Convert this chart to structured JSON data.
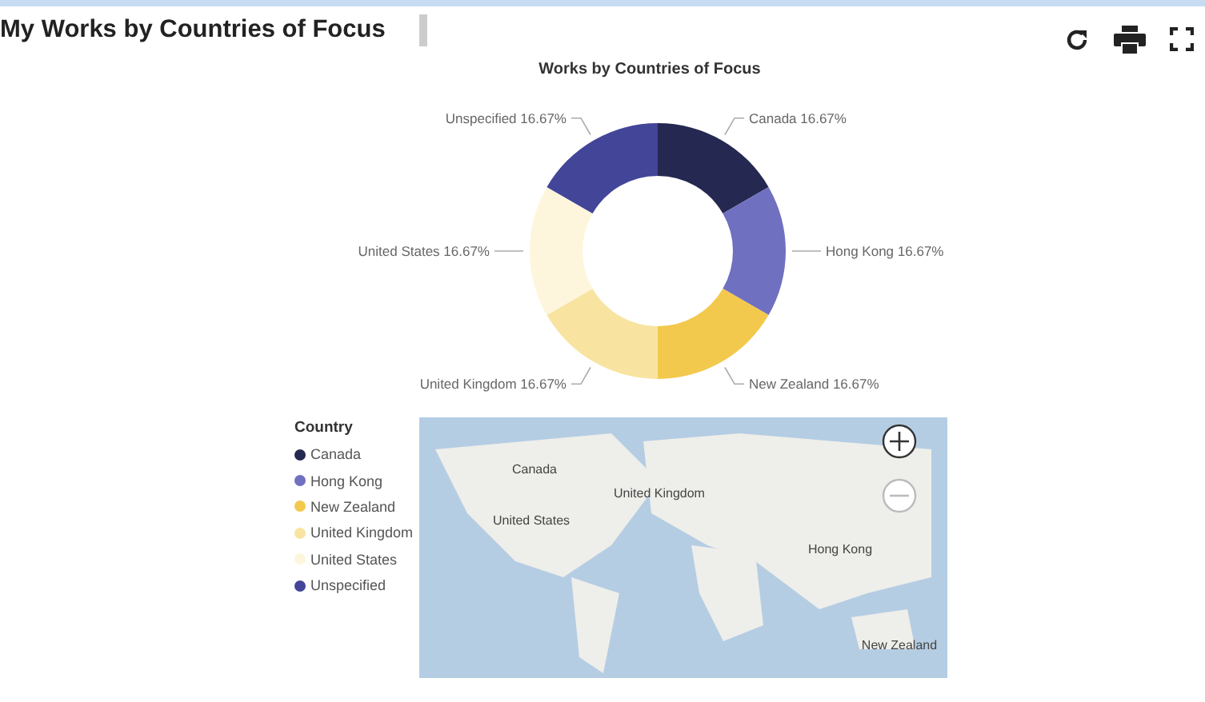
{
  "chart_data": {
    "type": "donut",
    "title": "My Works by Countries of Focus",
    "subtitle": "Works by Countries of Focus",
    "legend_title": "Country",
    "legend": "bottom left",
    "categories": [
      "Canada",
      "Hong Kong",
      "New Zealand",
      "United Kingdom",
      "United States",
      "Unspecified"
    ],
    "values": [
      16.67,
      16.67,
      16.67,
      16.67,
      16.67,
      16.67
    ],
    "value_labels": [
      "16.67%",
      "16.67%",
      "16.67%",
      "16.67%",
      "16.67%",
      "16.67%"
    ],
    "colors": [
      "#252850",
      "#7070c0",
      "#f2c94c",
      "#f8e4a0",
      "#fdf6dc",
      "#434599"
    ],
    "annotations": [
      "Canada",
      "United Kingdom",
      "United States",
      "Hong Kong",
      "New Zealand"
    ]
  }
}
